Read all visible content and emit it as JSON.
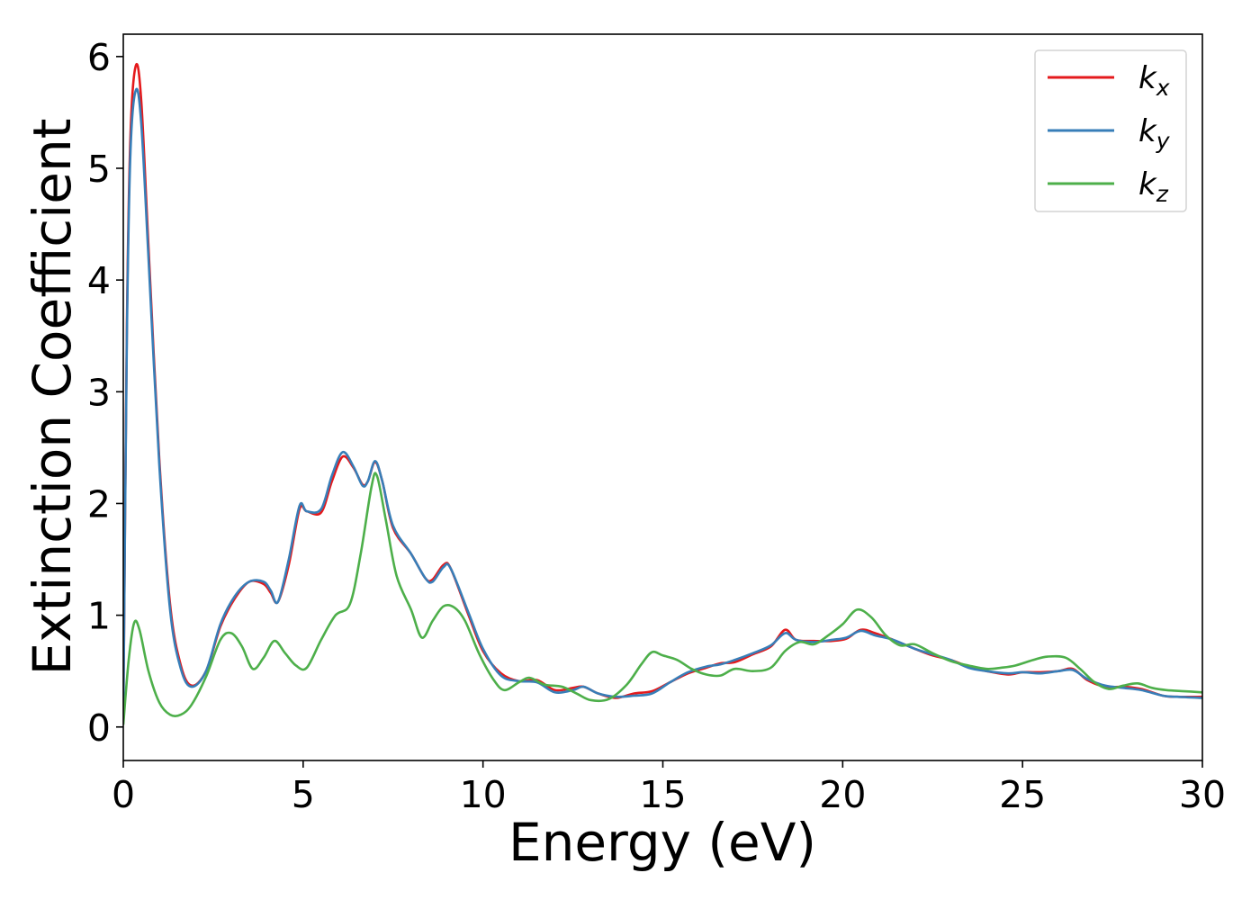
{
  "chart_data": {
    "type": "line",
    "xlabel": "Energy (eV)",
    "ylabel": "Extinction Coefficient",
    "xlim": [
      0,
      30
    ],
    "ylim": [
      -0.3,
      6.2
    ],
    "xticks": [
      0,
      5,
      10,
      15,
      20,
      25,
      30
    ],
    "yticks": [
      0,
      1,
      2,
      3,
      4,
      5,
      6
    ],
    "xtick_labels": [
      "0",
      "5",
      "10",
      "15",
      "20",
      "25",
      "30"
    ],
    "ytick_labels": [
      "0",
      "1",
      "2",
      "3",
      "4",
      "5",
      "6"
    ],
    "grid": false,
    "legend": {
      "position": "top-right"
    },
    "series": [
      {
        "name": "k",
        "subscript": "x",
        "color": "#e41a1c",
        "points": [
          [
            0,
            0.05
          ],
          [
            0.1,
            3.6
          ],
          [
            0.2,
            5.3
          ],
          [
            0.35,
            5.92
          ],
          [
            0.5,
            5.6
          ],
          [
            0.7,
            4.3
          ],
          [
            1.0,
            2.4
          ],
          [
            1.3,
            1.1
          ],
          [
            1.6,
            0.55
          ],
          [
            1.9,
            0.37
          ],
          [
            2.3,
            0.5
          ],
          [
            2.7,
            0.9
          ],
          [
            3.1,
            1.15
          ],
          [
            3.5,
            1.3
          ],
          [
            3.9,
            1.28
          ],
          [
            4.1,
            1.2
          ],
          [
            4.3,
            1.12
          ],
          [
            4.6,
            1.45
          ],
          [
            4.9,
            1.95
          ],
          [
            5.1,
            1.93
          ],
          [
            5.5,
            1.92
          ],
          [
            5.8,
            2.2
          ],
          [
            6.1,
            2.42
          ],
          [
            6.4,
            2.32
          ],
          [
            6.65,
            2.17
          ],
          [
            6.8,
            2.2
          ],
          [
            7.0,
            2.37
          ],
          [
            7.2,
            2.2
          ],
          [
            7.5,
            1.78
          ],
          [
            8.0,
            1.55
          ],
          [
            8.4,
            1.33
          ],
          [
            8.6,
            1.32
          ],
          [
            8.9,
            1.45
          ],
          [
            9.1,
            1.42
          ],
          [
            9.6,
            1.0
          ],
          [
            10.0,
            0.68
          ],
          [
            10.5,
            0.48
          ],
          [
            11.0,
            0.41
          ],
          [
            11.5,
            0.42
          ],
          [
            12.0,
            0.33
          ],
          [
            12.5,
            0.35
          ],
          [
            12.8,
            0.36
          ],
          [
            13.2,
            0.3
          ],
          [
            13.7,
            0.26
          ],
          [
            14.2,
            0.3
          ],
          [
            14.7,
            0.32
          ],
          [
            15.2,
            0.4
          ],
          [
            15.7,
            0.48
          ],
          [
            16.2,
            0.53
          ],
          [
            16.6,
            0.57
          ],
          [
            17.0,
            0.58
          ],
          [
            17.5,
            0.65
          ],
          [
            18.0,
            0.72
          ],
          [
            18.4,
            0.87
          ],
          [
            18.7,
            0.78
          ],
          [
            19.2,
            0.77
          ],
          [
            19.7,
            0.77
          ],
          [
            20.1,
            0.79
          ],
          [
            20.5,
            0.87
          ],
          [
            20.9,
            0.84
          ],
          [
            21.4,
            0.78
          ],
          [
            22.0,
            0.7
          ],
          [
            22.5,
            0.64
          ],
          [
            23.0,
            0.6
          ],
          [
            23.5,
            0.54
          ],
          [
            24.0,
            0.5
          ],
          [
            24.6,
            0.47
          ],
          [
            25.0,
            0.49
          ],
          [
            25.5,
            0.49
          ],
          [
            26.0,
            0.5
          ],
          [
            26.4,
            0.52
          ],
          [
            26.8,
            0.42
          ],
          [
            27.3,
            0.36
          ],
          [
            27.8,
            0.36
          ],
          [
            28.3,
            0.34
          ],
          [
            28.9,
            0.28
          ],
          [
            29.3,
            0.27
          ],
          [
            30.0,
            0.27
          ]
        ]
      },
      {
        "name": "k",
        "subscript": "y",
        "color": "#377eb8",
        "points": [
          [
            0,
            0.05
          ],
          [
            0.1,
            3.5
          ],
          [
            0.2,
            5.15
          ],
          [
            0.35,
            5.7
          ],
          [
            0.5,
            5.4
          ],
          [
            0.7,
            4.2
          ],
          [
            1.0,
            2.35
          ],
          [
            1.3,
            1.05
          ],
          [
            1.6,
            0.52
          ],
          [
            1.9,
            0.36
          ],
          [
            2.3,
            0.5
          ],
          [
            2.7,
            0.92
          ],
          [
            3.1,
            1.17
          ],
          [
            3.5,
            1.3
          ],
          [
            3.9,
            1.3
          ],
          [
            4.1,
            1.22
          ],
          [
            4.3,
            1.12
          ],
          [
            4.6,
            1.5
          ],
          [
            4.9,
            1.98
          ],
          [
            5.1,
            1.93
          ],
          [
            5.5,
            1.95
          ],
          [
            5.8,
            2.25
          ],
          [
            6.1,
            2.46
          ],
          [
            6.4,
            2.33
          ],
          [
            6.65,
            2.16
          ],
          [
            6.8,
            2.2
          ],
          [
            7.0,
            2.38
          ],
          [
            7.2,
            2.2
          ],
          [
            7.5,
            1.8
          ],
          [
            8.0,
            1.55
          ],
          [
            8.4,
            1.33
          ],
          [
            8.6,
            1.3
          ],
          [
            8.9,
            1.43
          ],
          [
            9.1,
            1.42
          ],
          [
            9.6,
            1.02
          ],
          [
            10.0,
            0.7
          ],
          [
            10.5,
            0.46
          ],
          [
            11.0,
            0.41
          ],
          [
            11.5,
            0.4
          ],
          [
            12.0,
            0.31
          ],
          [
            12.5,
            0.33
          ],
          [
            12.8,
            0.36
          ],
          [
            13.2,
            0.3
          ],
          [
            13.7,
            0.27
          ],
          [
            14.2,
            0.28
          ],
          [
            14.7,
            0.3
          ],
          [
            15.2,
            0.4
          ],
          [
            15.7,
            0.49
          ],
          [
            16.2,
            0.54
          ],
          [
            16.6,
            0.56
          ],
          [
            17.0,
            0.6
          ],
          [
            17.5,
            0.66
          ],
          [
            18.0,
            0.73
          ],
          [
            18.4,
            0.84
          ],
          [
            18.7,
            0.78
          ],
          [
            19.2,
            0.76
          ],
          [
            19.7,
            0.78
          ],
          [
            20.1,
            0.8
          ],
          [
            20.5,
            0.86
          ],
          [
            20.9,
            0.82
          ],
          [
            21.4,
            0.78
          ],
          [
            22.0,
            0.7
          ],
          [
            22.5,
            0.65
          ],
          [
            23.0,
            0.6
          ],
          [
            23.5,
            0.53
          ],
          [
            24.0,
            0.5
          ],
          [
            24.6,
            0.48
          ],
          [
            25.0,
            0.49
          ],
          [
            25.5,
            0.48
          ],
          [
            26.0,
            0.5
          ],
          [
            26.4,
            0.51
          ],
          [
            26.8,
            0.43
          ],
          [
            27.3,
            0.37
          ],
          [
            27.8,
            0.35
          ],
          [
            28.3,
            0.33
          ],
          [
            28.9,
            0.28
          ],
          [
            29.3,
            0.27
          ],
          [
            30.0,
            0.26
          ]
        ]
      },
      {
        "name": "k",
        "subscript": "z",
        "color": "#4daf4a",
        "points": [
          [
            0,
            0.02
          ],
          [
            0.15,
            0.6
          ],
          [
            0.3,
            0.93
          ],
          [
            0.45,
            0.87
          ],
          [
            0.7,
            0.5
          ],
          [
            1.0,
            0.22
          ],
          [
            1.3,
            0.11
          ],
          [
            1.6,
            0.11
          ],
          [
            1.9,
            0.2
          ],
          [
            2.3,
            0.45
          ],
          [
            2.7,
            0.78
          ],
          [
            3.0,
            0.84
          ],
          [
            3.3,
            0.72
          ],
          [
            3.6,
            0.52
          ],
          [
            3.9,
            0.62
          ],
          [
            4.2,
            0.77
          ],
          [
            4.5,
            0.66
          ],
          [
            4.8,
            0.55
          ],
          [
            5.1,
            0.53
          ],
          [
            5.5,
            0.78
          ],
          [
            5.9,
            1.0
          ],
          [
            6.3,
            1.1
          ],
          [
            6.6,
            1.55
          ],
          [
            6.9,
            2.15
          ],
          [
            7.05,
            2.25
          ],
          [
            7.3,
            1.85
          ],
          [
            7.6,
            1.35
          ],
          [
            8.0,
            1.05
          ],
          [
            8.3,
            0.8
          ],
          [
            8.6,
            0.95
          ],
          [
            8.9,
            1.08
          ],
          [
            9.2,
            1.07
          ],
          [
            9.5,
            0.95
          ],
          [
            9.9,
            0.65
          ],
          [
            10.3,
            0.42
          ],
          [
            10.6,
            0.33
          ],
          [
            11.0,
            0.4
          ],
          [
            11.3,
            0.44
          ],
          [
            11.7,
            0.38
          ],
          [
            12.2,
            0.36
          ],
          [
            12.6,
            0.3
          ],
          [
            13.0,
            0.24
          ],
          [
            13.5,
            0.25
          ],
          [
            14.0,
            0.38
          ],
          [
            14.4,
            0.56
          ],
          [
            14.7,
            0.67
          ],
          [
            15.0,
            0.64
          ],
          [
            15.4,
            0.6
          ],
          [
            15.8,
            0.52
          ],
          [
            16.2,
            0.47
          ],
          [
            16.6,
            0.46
          ],
          [
            17.0,
            0.52
          ],
          [
            17.5,
            0.5
          ],
          [
            18.0,
            0.53
          ],
          [
            18.4,
            0.68
          ],
          [
            18.8,
            0.76
          ],
          [
            19.2,
            0.74
          ],
          [
            19.6,
            0.82
          ],
          [
            20.0,
            0.92
          ],
          [
            20.4,
            1.05
          ],
          [
            20.8,
            0.98
          ],
          [
            21.2,
            0.82
          ],
          [
            21.6,
            0.73
          ],
          [
            22.0,
            0.74
          ],
          [
            22.5,
            0.66
          ],
          [
            23.0,
            0.59
          ],
          [
            23.5,
            0.55
          ],
          [
            24.0,
            0.52
          ],
          [
            24.4,
            0.53
          ],
          [
            24.8,
            0.55
          ],
          [
            25.3,
            0.6
          ],
          [
            25.7,
            0.63
          ],
          [
            26.2,
            0.62
          ],
          [
            26.6,
            0.52
          ],
          [
            27.0,
            0.4
          ],
          [
            27.4,
            0.34
          ],
          [
            27.8,
            0.37
          ],
          [
            28.2,
            0.39
          ],
          [
            28.6,
            0.35
          ],
          [
            29.0,
            0.33
          ],
          [
            29.5,
            0.32
          ],
          [
            30.0,
            0.31
          ]
        ]
      }
    ]
  }
}
